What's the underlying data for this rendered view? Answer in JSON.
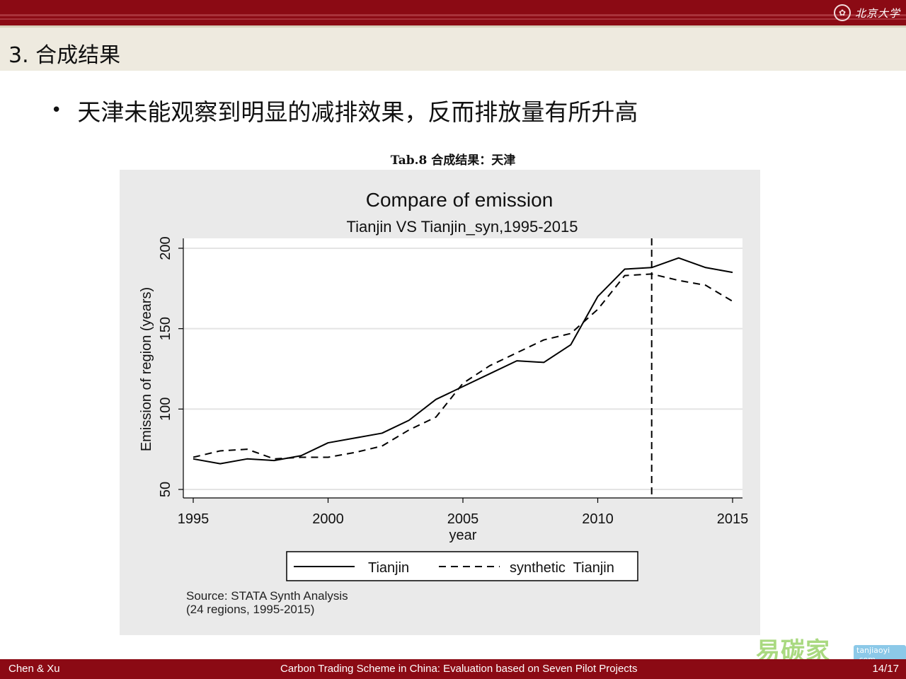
{
  "header": {
    "logo_text": "北京大学",
    "accent_color": "#8b0a14"
  },
  "slide": {
    "title": "3. 合成结果",
    "bullet": "天津未能观察到明显的减排效果，反而排放量有所升高",
    "caption": "Tab.8 合成结果：天津"
  },
  "chart_data": {
    "type": "line",
    "title": "Compare of emission",
    "subtitle": "Tianjin VS Tianjin_syn,1995-2015",
    "xlabel": "year",
    "ylabel": "Emission of region (years)",
    "xlim": [
      1995,
      2015
    ],
    "ylim": [
      50,
      200
    ],
    "xticks": [
      1995,
      2000,
      2005,
      2010,
      2015
    ],
    "yticks": [
      50,
      100,
      150,
      200
    ],
    "grid": "horizontal",
    "legend_position": "bottom",
    "vline": 2012,
    "x": [
      1995,
      1996,
      1997,
      1998,
      1999,
      2000,
      2001,
      2002,
      2003,
      2004,
      2005,
      2006,
      2007,
      2008,
      2009,
      2010,
      2011,
      2012,
      2013,
      2014,
      2015
    ],
    "series": [
      {
        "name": "Tianjin",
        "style": "solid",
        "values": [
          69,
          66,
          69,
          68,
          71,
          79,
          82,
          85,
          93,
          106,
          114,
          122,
          130,
          129,
          140,
          170,
          187,
          188,
          194,
          188,
          185
        ]
      },
      {
        "name": "synthetic  Tianjin",
        "style": "dashed",
        "values": [
          70,
          74,
          75,
          69,
          70,
          70,
          73,
          77,
          87,
          95,
          116,
          127,
          135,
          143,
          147,
          162,
          183,
          184,
          180,
          177,
          167
        ]
      }
    ],
    "note_lines": [
      "Source: STATA Synth Analysis",
      "(24 regions, 1995-2015)"
    ]
  },
  "footer": {
    "left": "Chen & Xu",
    "center": "Carbon Trading Scheme in China: Evaluation based on Seven Pilot Projects",
    "page": "14/17"
  },
  "watermark": {
    "text": "易碳家",
    "badge": "tanjiaoyi",
    "suffix": ".com"
  }
}
